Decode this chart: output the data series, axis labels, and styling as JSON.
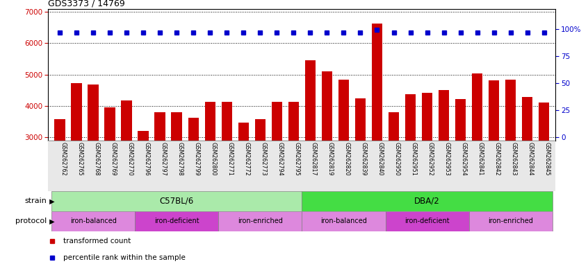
{
  "title": "GDS3373 / 14769",
  "samples": [
    "GSM262762",
    "GSM262765",
    "GSM262768",
    "GSM262769",
    "GSM262770",
    "GSM262796",
    "GSM262797",
    "GSM262798",
    "GSM262799",
    "GSM262800",
    "GSM262771",
    "GSM262772",
    "GSM262773",
    "GSM262794",
    "GSM262795",
    "GSM262817",
    "GSM262819",
    "GSM262820",
    "GSM262839",
    "GSM262840",
    "GSM262950",
    "GSM262951",
    "GSM262952",
    "GSM262953",
    "GSM262954",
    "GSM262841",
    "GSM262842",
    "GSM262843",
    "GSM262844",
    "GSM262845"
  ],
  "bar_values": [
    3580,
    4720,
    4680,
    3950,
    4170,
    3210,
    3790,
    3800,
    3630,
    4130,
    4130,
    3470,
    3570,
    4130,
    4130,
    5450,
    5100,
    4840,
    4250,
    6620,
    3790,
    4380,
    4430,
    4500,
    4220,
    5030,
    4820,
    4830,
    4280,
    4120
  ],
  "percentile_values": [
    97,
    97,
    97,
    97,
    97,
    97,
    97,
    97,
    97,
    97,
    97,
    97,
    97,
    97,
    97,
    97,
    97,
    97,
    97,
    99,
    97,
    97,
    97,
    97,
    97,
    97,
    97,
    97,
    97,
    97
  ],
  "bar_color": "#cc0000",
  "dot_color": "#0000cc",
  "ylim_left": [
    2900,
    7100
  ],
  "ylim_right": [
    -3.125,
    118.75
  ],
  "yticks_left": [
    3000,
    4000,
    5000,
    6000,
    7000
  ],
  "yticks_right": [
    0,
    25,
    50,
    75,
    100
  ],
  "yticklabels_right": [
    "0",
    "25",
    "50",
    "75",
    "100%"
  ],
  "strain_groups": [
    {
      "label": "C57BL/6",
      "start": 0,
      "end": 14,
      "color": "#aaeaaa"
    },
    {
      "label": "DBA/2",
      "start": 15,
      "end": 29,
      "color": "#44dd44"
    }
  ],
  "protocol_groups": [
    {
      "label": "iron-balanced",
      "start": 0,
      "end": 4,
      "color": "#dd88dd"
    },
    {
      "label": "iron-deficient",
      "start": 5,
      "end": 9,
      "color": "#cc44cc"
    },
    {
      "label": "iron-enriched",
      "start": 10,
      "end": 14,
      "color": "#dd88dd"
    },
    {
      "label": "iron-balanced",
      "start": 15,
      "end": 19,
      "color": "#dd88dd"
    },
    {
      "label": "iron-deficient",
      "start": 20,
      "end": 24,
      "color": "#cc44cc"
    },
    {
      "label": "iron-enriched",
      "start": 25,
      "end": 29,
      "color": "#dd88dd"
    }
  ],
  "legend_items": [
    {
      "label": "transformed count",
      "color": "#cc0000"
    },
    {
      "label": "percentile rank within the sample",
      "color": "#0000cc"
    }
  ],
  "background_color": "#ffffff",
  "tick_color_left": "#cc0000",
  "tick_color_right": "#0000cc"
}
